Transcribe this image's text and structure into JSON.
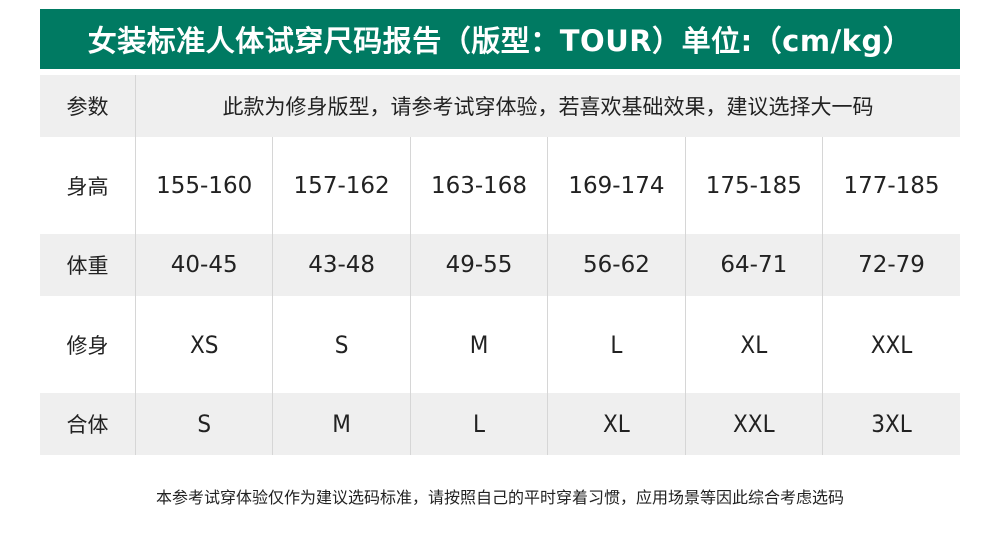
{
  "title": "女装标准人体试穿尺码报告（版型：TOUR）单位:（cm/kg）",
  "colors": {
    "header_bg": "#007a62",
    "row_gray": "#efefef"
  },
  "rows": [
    {
      "label": "参数",
      "note": "此款为修身版型，请参考试穿体验，若喜欢基础效果，建议选择大一码"
    },
    {
      "label": "身高",
      "values": [
        "155-160",
        "157-162",
        "163-168",
        "169-174",
        "175-185",
        "177-185"
      ]
    },
    {
      "label": "体重",
      "values": [
        "40-45",
        "43-48",
        "49-55",
        "56-62",
        "64-71",
        "72-79"
      ]
    },
    {
      "label": "修身",
      "values": [
        "XS",
        "S",
        "M",
        "L",
        "XL",
        "XXL"
      ]
    },
    {
      "label": "合体",
      "values": [
        "S",
        "M",
        "L",
        "XL",
        "XXL",
        "3XL"
      ]
    }
  ],
  "footer": "本参考试穿体验仅作为建议选码标准，请按照自己的平时穿着习惯，应用场景等因此综合考虑选码"
}
